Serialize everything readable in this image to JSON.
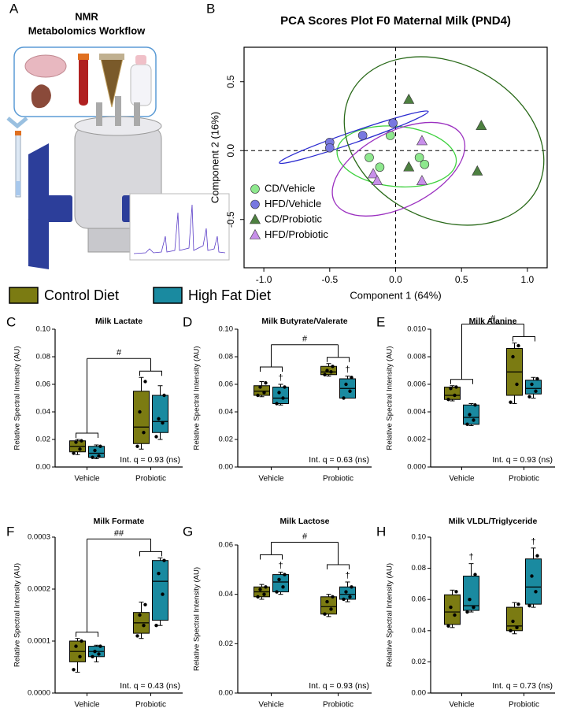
{
  "panel_a": {
    "label": "A",
    "title_lines": [
      "NMR",
      "Metabolomics Workflow"
    ]
  },
  "legend": [
    {
      "name": "Control Diet",
      "color": "#7b7b12"
    },
    {
      "name": "High Fat Diet",
      "color": "#1a8aa0"
    }
  ],
  "chart_data": [
    {
      "type": "scatter",
      "label": "B",
      "title": "PCA Scores Plot F0 Maternal Milk (PND4)",
      "xlabel": "Component 1 (64%)",
      "ylabel": "Component 2 (16%)",
      "xlim": [
        -1.15,
        1.15
      ],
      "ylim": [
        -0.85,
        0.75
      ],
      "xticks": [
        {
          "value": -1,
          "label": "-1.0"
        },
        -0.5,
        {
          "value": 0,
          "label": "0.0"
        },
        0.5,
        {
          "value": 1,
          "label": "1.0"
        }
      ],
      "yticks": [
        -0.5,
        {
          "value": 0,
          "label": "0.0"
        },
        0.5
      ],
      "zero_lines": true,
      "legend": "lower left",
      "ellipses": true,
      "series": [
        {
          "name": "CD/Vehicle",
          "shape": "circle",
          "color": "#8ee88e",
          "ellipse_color": "#3ed13e",
          "x": [
            -0.04,
            -0.2,
            -0.12,
            0.22,
            0.18
          ],
          "y": [
            0.11,
            -0.05,
            -0.12,
            -0.1,
            -0.05
          ]
        },
        {
          "name": "HFD/Vehicle",
          "shape": "circle",
          "color": "#7878e0",
          "ellipse_color": "#2a2ad0",
          "x": [
            -0.5,
            -0.5,
            -0.25,
            -0.02
          ],
          "y": [
            0.06,
            0.02,
            0.11,
            0.2
          ]
        },
        {
          "name": "CD/Probiotic",
          "shape": "triangle",
          "color": "#4d8040",
          "ellipse_color": "#2a6a1a",
          "x": [
            0.1,
            0.65,
            0.62,
            0.1
          ],
          "y": [
            0.37,
            0.18,
            -0.15,
            -0.12
          ]
        },
        {
          "name": "HFD/Probiotic",
          "shape": "triangle",
          "color": "#c890ea",
          "ellipse_color": "#9b30c0",
          "x": [
            0.2,
            0.2,
            -0.17,
            -0.14
          ],
          "y": [
            0.07,
            -0.22,
            -0.17,
            -0.22
          ]
        }
      ]
    },
    {
      "type": "box",
      "label": "C",
      "title": "Milk Lactate",
      "ylabel": "Relative Spectral Intensity (AU)",
      "categories": [
        "Vehicle",
        "Probiotic"
      ],
      "ylim": [
        0,
        0.1
      ],
      "yticks": [
        {
          "value": 0,
          "label": "0.00"
        },
        0.02,
        0.04,
        0.06,
        0.08,
        {
          "value": 0.1,
          "label": "0.10"
        }
      ],
      "annotation": "Int. q = 0.93 (ns)",
      "significance": "#",
      "series": [
        {
          "color": "#7b7b12",
          "boxes": [
            {
              "min": 0.009,
              "q1": 0.011,
              "median": 0.015,
              "q3": 0.019,
              "max": 0.02,
              "points": [
                0.01,
                0.013,
                0.018,
                0.019
              ]
            },
            {
              "min": 0.013,
              "q1": 0.017,
              "median": 0.029,
              "q3": 0.055,
              "max": 0.065,
              "points": [
                0.015,
                0.025,
                0.04,
                0.062
              ]
            }
          ]
        },
        {
          "color": "#1a8aa0",
          "boxes": [
            {
              "min": 0.006,
              "q1": 0.007,
              "median": 0.01,
              "q3": 0.015,
              "max": 0.016,
              "points": [
                0.007,
                0.008,
                0.012,
                0.015
              ]
            },
            {
              "min": 0.02,
              "q1": 0.025,
              "median": 0.033,
              "q3": 0.052,
              "max": 0.059,
              "points": [
                0.022,
                0.032,
                0.035,
                0.052
              ]
            }
          ]
        }
      ]
    },
    {
      "type": "box",
      "label": "D",
      "title": "Milk Butyrate/Valerate",
      "ylabel": "Relative Spectral Intensity (AU)",
      "categories": [
        "Vehicle",
        "Probiotic"
      ],
      "ylim": [
        0,
        0.1
      ],
      "yticks": [
        {
          "value": 0,
          "label": "0.00"
        },
        0.02,
        0.04,
        0.06,
        0.08,
        {
          "value": 0.1,
          "label": "0.10"
        }
      ],
      "annotation": "Int. q = 0.63 (ns)",
      "significance": "#",
      "series": [
        {
          "color": "#7b7b12",
          "boxes": [
            {
              "min": 0.051,
              "q1": 0.052,
              "median": 0.055,
              "q3": 0.059,
              "max": 0.062,
              "points": [
                0.052,
                0.054,
                0.058,
                0.061
              ]
            },
            {
              "min": 0.066,
              "q1": 0.067,
              "median": 0.069,
              "q3": 0.073,
              "max": 0.075,
              "points": [
                0.067,
                0.069,
                0.07,
                0.073
              ]
            }
          ]
        },
        {
          "color": "#1a8aa0",
          "daggers": [
            "†",
            "†"
          ],
          "boxes": [
            {
              "min": 0.045,
              "q1": 0.046,
              "median": 0.05,
              "q3": 0.058,
              "max": 0.06,
              "points": [
                0.046,
                0.05,
                0.054,
                0.058
              ]
            },
            {
              "min": 0.05,
              "q1": 0.05,
              "median": 0.057,
              "q3": 0.064,
              "max": 0.066,
              "points": [
                0.05,
                0.055,
                0.06,
                0.065
              ]
            }
          ]
        }
      ]
    },
    {
      "type": "box",
      "label": "E",
      "title": "Milk Alanine",
      "ylabel": "Relative Spectral Intensity (AU)",
      "categories": [
        "Vehicle",
        "Probiotic"
      ],
      "ylim": [
        0,
        0.01
      ],
      "yticks": [
        {
          "value": 0,
          "label": "0.000"
        },
        0.002,
        0.004,
        0.006,
        0.008,
        {
          "value": 0.01,
          "label": "0.010"
        }
      ],
      "annotation": "Int. q = 0.93 (ns)",
      "significance": "#",
      "series": [
        {
          "color": "#7b7b12",
          "boxes": [
            {
              "min": 0.0048,
              "q1": 0.0049,
              "median": 0.0052,
              "q3": 0.0058,
              "max": 0.0059,
              "points": [
                0.0049,
                0.0052,
                0.0057,
                0.0058
              ]
            },
            {
              "min": 0.0046,
              "q1": 0.0052,
              "median": 0.0069,
              "q3": 0.0086,
              "max": 0.009,
              "points": [
                0.0047,
                0.006,
                0.008,
                0.0088
              ]
            }
          ]
        },
        {
          "color": "#1a8aa0",
          "boxes": [
            {
              "min": 0.003,
              "q1": 0.0031,
              "median": 0.0036,
              "q3": 0.0045,
              "max": 0.0046,
              "points": [
                0.0031,
                0.0034,
                0.0038,
                0.0045
              ]
            },
            {
              "min": 0.005,
              "q1": 0.0053,
              "median": 0.0057,
              "q3": 0.0063,
              "max": 0.0065,
              "points": [
                0.0051,
                0.0055,
                0.006,
                0.0064
              ]
            }
          ]
        }
      ]
    },
    {
      "type": "box",
      "label": "F",
      "title": "Milk Formate",
      "ylabel": "Relative Spectral Intensity (AU)",
      "categories": [
        "Vehicle",
        "Probiotic"
      ],
      "ylim": [
        0,
        0.0003
      ],
      "yticks": [
        {
          "value": 0,
          "label": "0.0000"
        },
        0.0001,
        0.0002,
        0.0003
      ],
      "annotation": "Int. q = 0.43 (ns)",
      "significance": "##",
      "series": [
        {
          "color": "#7b7b12",
          "boxes": [
            {
              "min": 4e-05,
              "q1": 6e-05,
              "median": 8e-05,
              "q3": 0.0001,
              "max": 0.000105,
              "points": [
                4.5e-05,
                7e-05,
                9e-05,
                0.0001
              ]
            },
            {
              "min": 0.000105,
              "q1": 0.000115,
              "median": 0.000135,
              "q3": 0.000155,
              "max": 0.000175,
              "points": [
                0.00011,
                0.00013,
                0.00015,
                0.00017
              ]
            }
          ]
        },
        {
          "color": "#1a8aa0",
          "boxes": [
            {
              "min": 6e-05,
              "q1": 7e-05,
              "median": 8e-05,
              "q3": 9e-05,
              "max": 9.2e-05,
              "points": [
                7e-05,
                7.5e-05,
                8e-05,
                9e-05
              ]
            },
            {
              "min": 0.00013,
              "q1": 0.00014,
              "median": 0.000215,
              "q3": 0.000255,
              "max": 0.00026,
              "points": [
                0.00013,
                0.00019,
                0.00023,
                0.000255
              ]
            }
          ]
        }
      ]
    },
    {
      "type": "box",
      "label": "G",
      "title": "Milk Lactose",
      "ylabel": "Relative Spectral Intensity (AU)",
      "categories": [
        "Vehicle",
        "Probiotic"
      ],
      "ylim": [
        0,
        0.06
      ],
      "yticks": [
        {
          "value": 0,
          "label": "0.00"
        },
        0.02,
        0.04,
        0.06
      ],
      "annotation": "Int. q = 0.93 (ns)",
      "significance": "#",
      "series": [
        {
          "color": "#7b7b12",
          "boxes": [
            {
              "min": 0.038,
              "q1": 0.039,
              "median": 0.041,
              "q3": 0.043,
              "max": 0.044,
              "points": [
                0.039,
                0.04,
                0.042,
                0.043
              ]
            },
            {
              "min": 0.031,
              "q1": 0.032,
              "median": 0.035,
              "q3": 0.039,
              "max": 0.04,
              "points": [
                0.032,
                0.034,
                0.037,
                0.039
              ]
            }
          ]
        },
        {
          "color": "#1a8aa0",
          "daggers": [
            "†",
            "†"
          ],
          "boxes": [
            {
              "min": 0.04,
              "q1": 0.041,
              "median": 0.045,
              "q3": 0.048,
              "max": 0.049,
              "points": [
                0.041,
                0.043,
                0.046,
                0.048
              ]
            },
            {
              "min": 0.037,
              "q1": 0.038,
              "median": 0.04,
              "q3": 0.043,
              "max": 0.045,
              "points": [
                0.038,
                0.039,
                0.041,
                0.043
              ]
            }
          ]
        }
      ]
    },
    {
      "type": "box",
      "label": "H",
      "title": "Milk VLDL/Triglyceride",
      "ylabel": "Relative Spectral Intensity (AU)",
      "categories": [
        "Vehicle",
        "Probiotic"
      ],
      "ylim": [
        0,
        0.1
      ],
      "yticks": [
        {
          "value": 0,
          "label": "0.00"
        },
        0.02,
        0.04,
        0.06,
        0.08,
        {
          "value": 0.1,
          "label": "0.10"
        }
      ],
      "annotation": "Int. q = 0.73 (ns)",
      "series": [
        {
          "color": "#7b7b12",
          "boxes": [
            {
              "min": 0.042,
              "q1": 0.044,
              "median": 0.052,
              "q3": 0.063,
              "max": 0.066,
              "points": [
                0.043,
                0.05,
                0.055,
                0.065
              ]
            },
            {
              "min": 0.038,
              "q1": 0.04,
              "median": 0.043,
              "q3": 0.055,
              "max": 0.058,
              "points": [
                0.04,
                0.042,
                0.046,
                0.057
              ]
            }
          ]
        },
        {
          "color": "#1a8aa0",
          "daggers": [
            "†",
            "†"
          ],
          "boxes": [
            {
              "min": 0.052,
              "q1": 0.053,
              "median": 0.056,
              "q3": 0.075,
              "max": 0.083,
              "points": [
                0.052,
                0.055,
                0.06,
                0.076
              ]
            },
            {
              "min": 0.055,
              "q1": 0.057,
              "median": 0.068,
              "q3": 0.086,
              "max": 0.093,
              "points": [
                0.056,
                0.065,
                0.075,
                0.088
              ]
            }
          ]
        }
      ]
    }
  ]
}
